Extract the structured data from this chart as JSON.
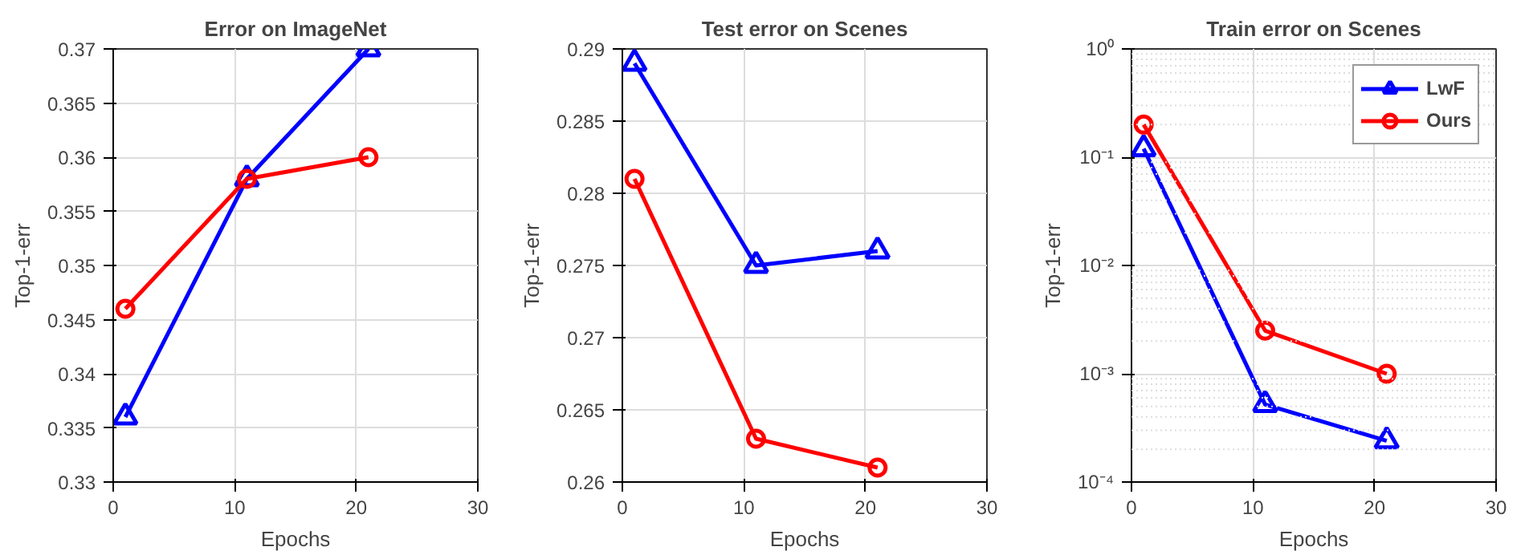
{
  "chart_data": [
    {
      "type": "line",
      "title": "Error on ImageNet",
      "xlabel": "Epochs",
      "ylabel": "Top-1-err",
      "x": [
        1,
        11,
        21
      ],
      "xlim": [
        0,
        30
      ],
      "xticks": [
        0,
        10,
        20,
        30
      ],
      "ylim": [
        0.33,
        0.37
      ],
      "yticks": [
        0.33,
        0.335,
        0.34,
        0.345,
        0.35,
        0.355,
        0.36,
        0.365,
        0.37
      ],
      "grid": true,
      "legend": false,
      "line_style": "solid",
      "series": [
        {
          "color": "#0000ff",
          "marker": "triangle",
          "values": [
            0.336,
            0.358,
            0.37
          ]
        },
        {
          "color": "#ff0000",
          "marker": "circle",
          "values": [
            0.346,
            0.358,
            0.36
          ]
        }
      ]
    },
    {
      "type": "line",
      "title": "Test error on Scenes",
      "xlabel": "Epochs",
      "ylabel": "Top-1-err",
      "x": [
        1,
        11,
        21
      ],
      "xlim": [
        0,
        30
      ],
      "xticks": [
        0,
        10,
        20,
        30
      ],
      "ylim": [
        0.26,
        0.29
      ],
      "yticks": [
        0.26,
        0.265,
        0.27,
        0.275,
        0.28,
        0.285,
        0.29
      ],
      "grid": true,
      "legend": false,
      "line_style": "solid",
      "series": [
        {
          "color": "#0000ff",
          "marker": "triangle",
          "values": [
            0.289,
            0.275,
            0.276
          ]
        },
        {
          "color": "#ff0000",
          "marker": "circle",
          "values": [
            0.281,
            0.263,
            0.261
          ]
        }
      ]
    },
    {
      "type": "line",
      "title": "Train error on Scenes",
      "xlabel": "Epochs",
      "ylabel": "Top-1-err",
      "x": [
        1,
        11,
        21
      ],
      "xlim": [
        0,
        30
      ],
      "xticks": [
        0,
        10,
        20,
        30
      ],
      "log": "y",
      "ylim": [
        0.0001,
        1
      ],
      "yticks": [
        {
          "value": 0.0001,
          "label": "10⁻⁴"
        },
        {
          "value": 0.001,
          "label": "10⁻³"
        },
        {
          "value": 0.01,
          "label": "10⁻²"
        },
        {
          "value": 0.1,
          "label": "10⁻¹"
        },
        {
          "value": 1,
          "label": "10⁰"
        }
      ],
      "grid": true,
      "legend": "top right",
      "line_style": "solid",
      "series": [
        {
          "name": "LwF",
          "color": "#0000ff",
          "marker": "triangle",
          "values": [
            0.12,
            0.00052,
            0.00024
          ]
        },
        {
          "name": "Ours",
          "color": "#ff0000",
          "marker": "circle",
          "values": [
            0.2,
            0.0025,
            0.001
          ]
        }
      ]
    }
  ]
}
